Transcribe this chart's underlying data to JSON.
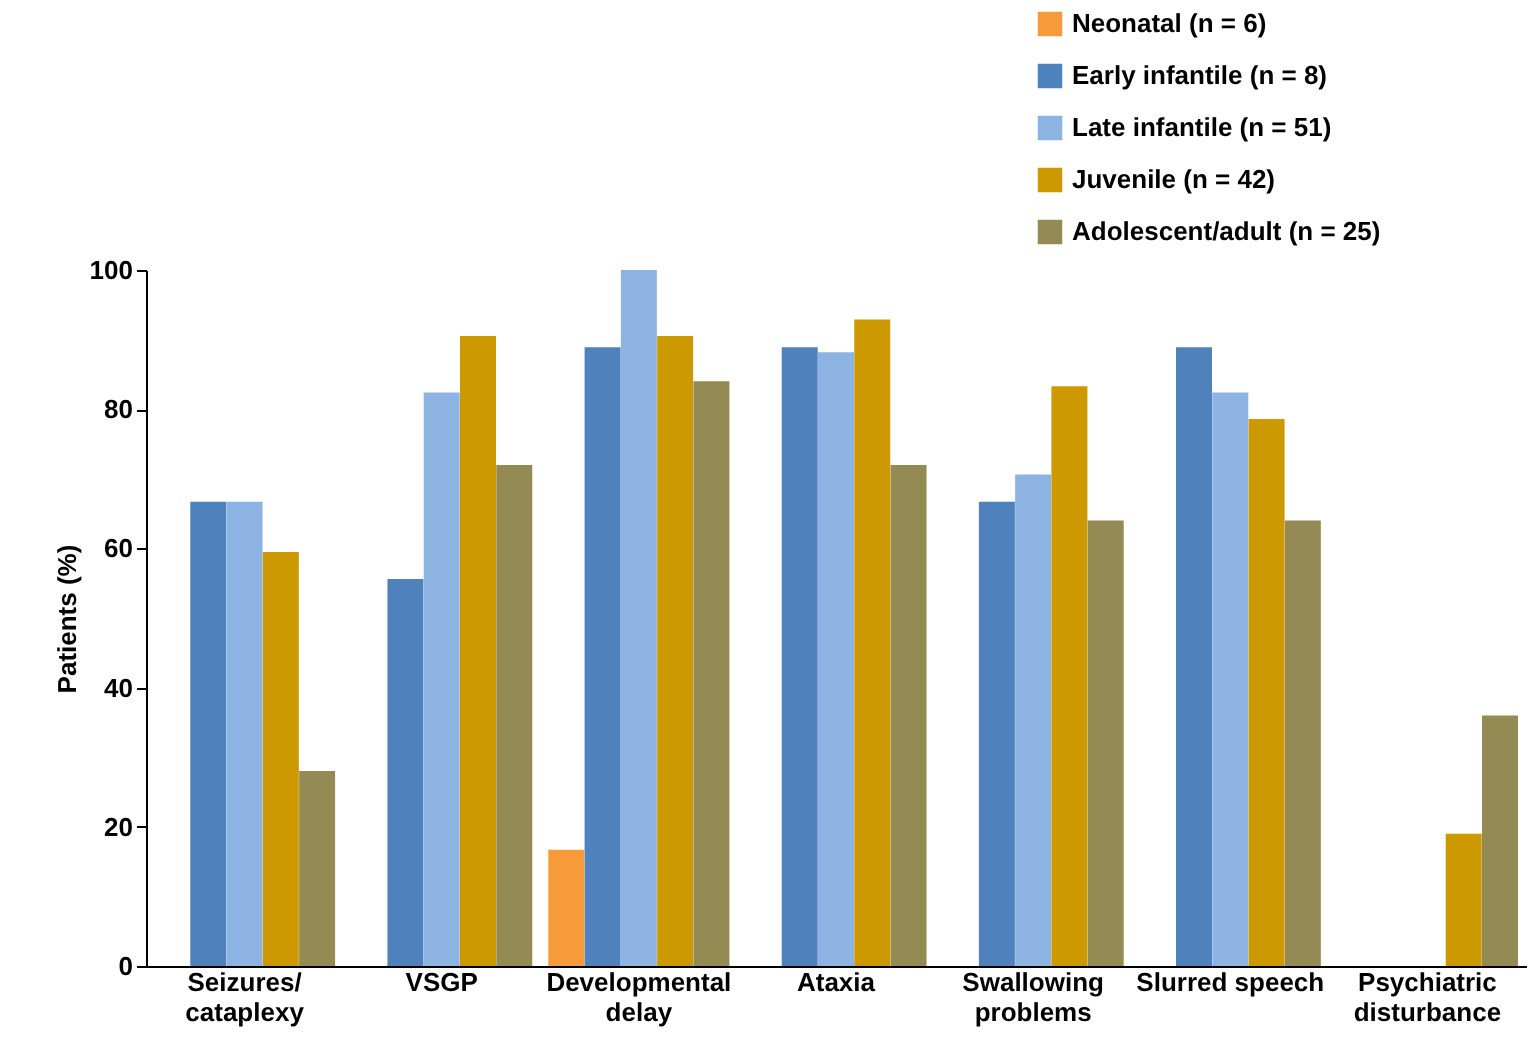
{
  "chart_data": {
    "type": "bar",
    "ylabel": "Patients (%)",
    "categories": [
      "Seizures/\ncataplexy",
      "VSGP",
      "Developmental\ndelay",
      "Ataxia",
      "Swallowing\nproblems",
      "Slurred speech",
      "Psychiatric\ndisturbance"
    ],
    "series": [
      {
        "name": "Neonatal (n = 6)",
        "color": "#f79a3a",
        "values": [
          null,
          null,
          16.7,
          null,
          null,
          null,
          null
        ]
      },
      {
        "name": "Early infantile (n = 8)",
        "color": "#4f81bd",
        "values": [
          66.7,
          55.6,
          88.9,
          88.9,
          66.7,
          88.9,
          null
        ]
      },
      {
        "name": "Late infantile (n = 51)",
        "color": "#8db3e2",
        "values": [
          66.7,
          82.4,
          100,
          88.2,
          70.6,
          82.4,
          null
        ]
      },
      {
        "name": "Juvenile (n = 42)",
        "color": "#cc9900",
        "values": [
          59.5,
          90.5,
          90.5,
          92.9,
          83.3,
          78.6,
          19
        ]
      },
      {
        "name": "Adolescent/adult (n = 25)",
        "color": "#948b54",
        "values": [
          28,
          72,
          84,
          72,
          64,
          64,
          36
        ]
      }
    ],
    "ylim": [
      0,
      100
    ],
    "yticks": [
      0,
      20,
      40,
      60,
      80,
      100
    ],
    "grid": false,
    "legend": "top right"
  }
}
